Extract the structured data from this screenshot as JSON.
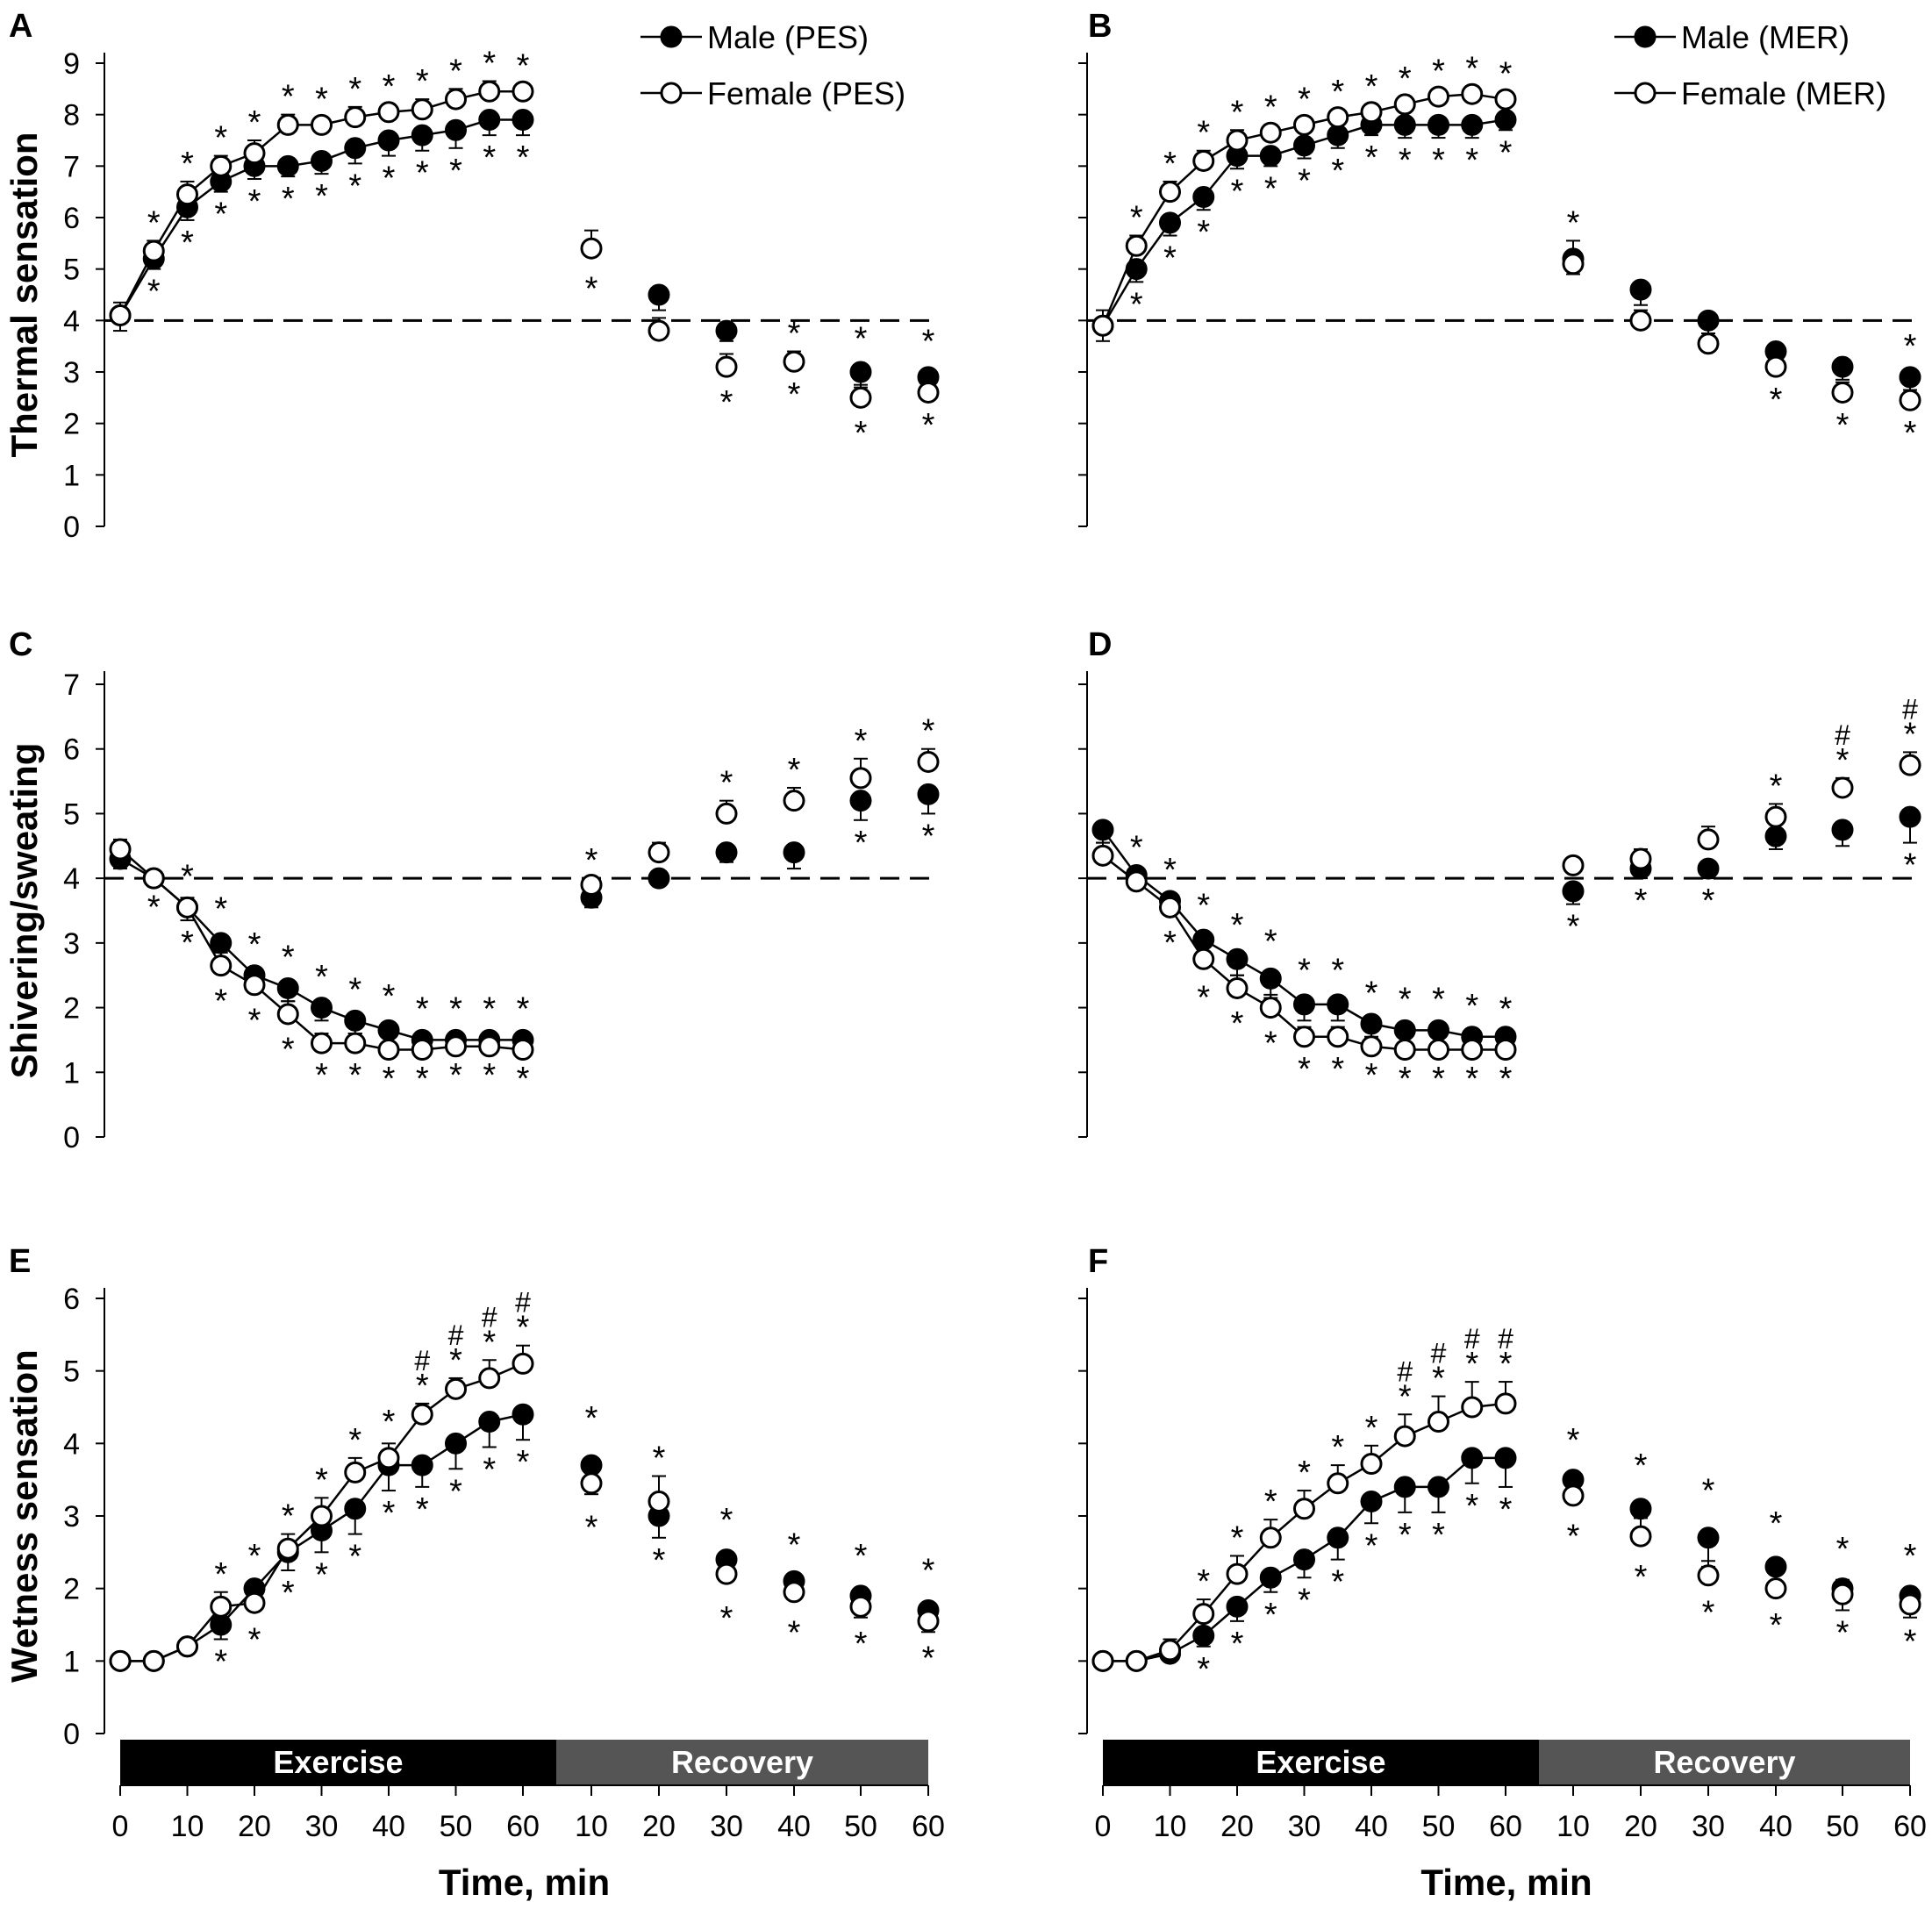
{
  "chart_data": [
    {
      "type": "line",
      "panel": "A",
      "ylabel": "Thermal sensation",
      "yticks": [
        "0",
        "1",
        "2",
        "3",
        "4",
        "5",
        "6",
        "7",
        "8",
        "9"
      ],
      "ylim": [
        0,
        9
      ],
      "baseline": 4,
      "legend": [
        "Male (PES)",
        "Female (PES)"
      ],
      "exercise_x": [
        0,
        5,
        10,
        15,
        20,
        25,
        30,
        35,
        40,
        45,
        50,
        55,
        60
      ],
      "recovery_x": [
        10,
        20,
        30,
        40,
        50,
        60
      ],
      "series": [
        {
          "name": "Male (PES)",
          "marker": "filled",
          "exercise": [
            4.1,
            5.2,
            6.2,
            6.7,
            7.0,
            7.0,
            7.1,
            7.35,
            7.5,
            7.6,
            7.7,
            7.9,
            7.9
          ],
          "exercise_err": [
            0.3,
            0.2,
            0.25,
            0.2,
            0.25,
            0.2,
            0.25,
            0.3,
            0.3,
            0.3,
            0.35,
            0.3,
            0.3
          ],
          "recovery": [
            null,
            4.5,
            3.8,
            null,
            3.0,
            2.9
          ],
          "recovery_err": [
            0,
            0.3,
            0.2,
            0,
            0.3,
            0.35
          ]
        },
        {
          "name": "Female (PES)",
          "marker": "open",
          "exercise": [
            4.1,
            5.35,
            6.45,
            7.0,
            7.25,
            7.8,
            7.8,
            7.95,
            8.05,
            8.1,
            8.3,
            8.45,
            8.45
          ],
          "exercise_err": [
            0.25,
            0.2,
            0.25,
            0.2,
            0.25,
            0.2,
            0.15,
            0.2,
            0.15,
            0.2,
            0.2,
            0.2,
            0.15
          ],
          "recovery": [
            5.4,
            3.8,
            3.1,
            3.2,
            2.5,
            2.6
          ],
          "recovery_err": [
            0.35,
            0.25,
            0.25,
            0.2,
            0.25,
            0.2
          ]
        }
      ],
      "annotations": {
        "exercise_above": [
          "",
          "*",
          "*",
          "*",
          "*",
          "*",
          "*",
          "*",
          "*",
          "*",
          "*",
          "*",
          "*"
        ],
        "exercise_below": [
          "",
          "*",
          "*",
          "*",
          "*",
          "*",
          "*",
          "*",
          "*",
          "*",
          "*",
          "*",
          "*"
        ],
        "recovery_above": [
          "",
          "",
          "",
          "*",
          "*",
          "*"
        ],
        "recovery_below": [
          "*",
          "",
          "*",
          "*",
          "*",
          "*"
        ]
      }
    },
    {
      "type": "line",
      "panel": "B",
      "ylabel": "",
      "yticks": [],
      "ylim": [
        0,
        9
      ],
      "baseline": 4,
      "legend": [
        "Male (MER)",
        "Female (MER)"
      ],
      "exercise_x": [
        0,
        5,
        10,
        15,
        20,
        25,
        30,
        35,
        40,
        45,
        50,
        55,
        60
      ],
      "recovery_x": [
        10,
        20,
        30,
        40,
        50,
        60
      ],
      "series": [
        {
          "name": "Male (MER)",
          "marker": "filled",
          "exercise": [
            3.9,
            5.0,
            5.9,
            6.4,
            7.2,
            7.2,
            7.4,
            7.6,
            7.8,
            7.8,
            7.8,
            7.8,
            7.9
          ],
          "exercise_err": [
            0.3,
            0.25,
            0.25,
            0.25,
            0.25,
            0.2,
            0.25,
            0.25,
            0.2,
            0.25,
            0.25,
            0.25,
            0.2
          ],
          "recovery": [
            5.2,
            4.6,
            4.0,
            3.4,
            3.1,
            2.9
          ],
          "recovery_err": [
            0.3,
            0.3,
            0.3,
            0.25,
            0.25,
            0.25
          ]
        },
        {
          "name": "Female (MER)",
          "marker": "open",
          "exercise": [
            3.9,
            5.45,
            6.5,
            7.1,
            7.5,
            7.65,
            7.8,
            7.95,
            8.05,
            8.2,
            8.35,
            8.4,
            8.3
          ],
          "exercise_err": [
            0.3,
            0.2,
            0.2,
            0.2,
            0.2,
            0.15,
            0.15,
            0.15,
            0.15,
            0.15,
            0.15,
            0.15,
            0.15
          ],
          "recovery": [
            5.1,
            4.0,
            3.55,
            3.1,
            2.6,
            2.45
          ],
          "recovery_err": [
            0.45,
            0.2,
            0.2,
            0.2,
            0.2,
            0.2
          ]
        }
      ],
      "annotations": {
        "exercise_above": [
          "",
          "*",
          "*",
          "*",
          "*",
          "*",
          "*",
          "*",
          "*",
          "*",
          "*",
          "*",
          "*"
        ],
        "exercise_below": [
          "",
          "*",
          "*",
          "*",
          "*",
          "*",
          "*",
          "*",
          "*",
          "*",
          "*",
          "*",
          "*"
        ],
        "recovery_above": [
          "*",
          "",
          "",
          "",
          "",
          "*"
        ],
        "recovery_below": [
          "",
          "",
          "",
          "*",
          "*",
          "*"
        ]
      }
    },
    {
      "type": "line",
      "panel": "C",
      "ylabel": "Shivering/sweating",
      "yticks": [
        "0",
        "1",
        "2",
        "3",
        "4",
        "5",
        "6",
        "7"
      ],
      "ylim": [
        0,
        7
      ],
      "baseline": 4,
      "legend": [],
      "exercise_x": [
        0,
        5,
        10,
        15,
        20,
        25,
        30,
        35,
        40,
        45,
        50,
        55,
        60
      ],
      "recovery_x": [
        10,
        20,
        30,
        40,
        50,
        60
      ],
      "series": [
        {
          "name": "Male (PES)",
          "marker": "filled",
          "exercise": [
            4.3,
            4.0,
            3.55,
            3.0,
            2.5,
            2.3,
            2.0,
            1.8,
            1.65,
            1.5,
            1.5,
            1.5,
            1.5
          ],
          "exercise_err": [
            0.15,
            0.1,
            0.2,
            0.25,
            0.2,
            0.2,
            0.2,
            0.2,
            0.25,
            0.2,
            0.2,
            0.2,
            0.2
          ],
          "recovery": [
            3.7,
            4.0,
            4.4,
            4.4,
            5.2,
            5.3
          ],
          "recovery_err": [
            0.15,
            0.1,
            0.15,
            0.25,
            0.3,
            0.3
          ]
        },
        {
          "name": "Female (PES)",
          "marker": "open",
          "exercise": [
            4.45,
            4.0,
            3.55,
            2.65,
            2.35,
            1.9,
            1.45,
            1.45,
            1.35,
            1.35,
            1.4,
            1.4,
            1.35
          ],
          "exercise_err": [
            0.15,
            0.1,
            0.15,
            0.2,
            0.2,
            0.2,
            0.15,
            0.15,
            0.1,
            0.1,
            0.1,
            0.1,
            0.1
          ],
          "recovery": [
            3.9,
            4.4,
            5.0,
            5.2,
            5.55,
            5.8
          ],
          "recovery_err": [
            0.1,
            0.15,
            0.2,
            0.2,
            0.3,
            0.2
          ]
        }
      ],
      "annotations": {
        "exercise_above": [
          "",
          "",
          "*",
          "*",
          "*",
          "*",
          "*",
          "*",
          "*",
          "*",
          "*",
          "*",
          "*"
        ],
        "exercise_below": [
          "",
          "*",
          "*",
          "*",
          "*",
          "*",
          "*",
          "*",
          "*",
          "*",
          "*",
          "*",
          "*"
        ],
        "recovery_above": [
          "*",
          "",
          "*",
          "*",
          "*",
          "*"
        ],
        "recovery_below": [
          "",
          "",
          "",
          "",
          "*",
          "*"
        ]
      }
    },
    {
      "type": "line",
      "panel": "D",
      "ylabel": "",
      "yticks": [],
      "ylim": [
        0,
        7
      ],
      "baseline": 4,
      "legend": [],
      "exercise_x": [
        0,
        5,
        10,
        15,
        20,
        25,
        30,
        35,
        40,
        45,
        50,
        55,
        60
      ],
      "recovery_x": [
        10,
        20,
        30,
        40,
        50,
        60
      ],
      "series": [
        {
          "name": "Male (MER)",
          "marker": "filled",
          "exercise": [
            4.75,
            4.05,
            3.65,
            3.05,
            2.75,
            2.45,
            2.05,
            2.05,
            1.75,
            1.65,
            1.65,
            1.55,
            1.55
          ],
          "exercise_err": [
            0.2,
            0.15,
            0.2,
            0.25,
            0.25,
            0.3,
            0.25,
            0.25,
            0.2,
            0.2,
            0.2,
            0.2,
            0.15
          ],
          "recovery": [
            3.8,
            4.15,
            4.15,
            4.65,
            4.75,
            4.95
          ],
          "recovery_err": [
            0.2,
            0.15,
            0.15,
            0.2,
            0.25,
            0.4
          ]
        },
        {
          "name": "Female (MER)",
          "marker": "open",
          "exercise": [
            4.35,
            3.95,
            3.55,
            2.75,
            2.3,
            2.0,
            1.55,
            1.55,
            1.4,
            1.35,
            1.35,
            1.35,
            1.35
          ],
          "exercise_err": [
            0.2,
            0.1,
            0.2,
            0.25,
            0.2,
            0.2,
            0.15,
            0.15,
            0.1,
            0.1,
            0.1,
            0.1,
            0.1
          ],
          "recovery": [
            4.2,
            4.3,
            4.6,
            4.95,
            5.4,
            5.75
          ],
          "recovery_err": [
            0.1,
            0.15,
            0.2,
            0.2,
            0.15,
            0.2
          ]
        }
      ],
      "annotations": {
        "exercise_above": [
          "",
          "*",
          "*",
          "*",
          "*",
          "*",
          "*",
          "*",
          "*",
          "*",
          "*",
          "*",
          "*"
        ],
        "exercise_below": [
          "",
          "",
          "*",
          "*",
          "*",
          "*",
          "*",
          "*",
          "*",
          "*",
          "*",
          "*",
          "*"
        ],
        "recovery_above": [
          "",
          "",
          "",
          "*",
          "*",
          "*"
        ],
        "recovery_below": [
          "*",
          "*",
          "*",
          "",
          "",
          "*"
        ],
        "recovery_hash": [
          "",
          "",
          "",
          "",
          "#",
          "#"
        ]
      }
    },
    {
      "type": "line",
      "panel": "E",
      "ylabel": "Wetness sensation",
      "yticks": [
        "0",
        "1",
        "2",
        "3",
        "4",
        "5",
        "6"
      ],
      "ylim": [
        0,
        6
      ],
      "baseline": null,
      "legend": [],
      "exercise_x": [
        0,
        5,
        10,
        15,
        20,
        25,
        30,
        35,
        40,
        45,
        50,
        55,
        60
      ],
      "recovery_x": [
        10,
        20,
        30,
        40,
        50,
        60
      ],
      "xticks": [
        "0",
        "10",
        "20",
        "30",
        "40",
        "50",
        "60",
        "10",
        "20",
        "30",
        "40",
        "50",
        "60"
      ],
      "xlabel": "Time, min",
      "phases": [
        "Exercise",
        "Recovery"
      ],
      "series": [
        {
          "name": "Male (PES)",
          "marker": "filled",
          "exercise": [
            1.0,
            1.0,
            1.2,
            1.5,
            2.0,
            2.5,
            2.8,
            3.1,
            3.7,
            3.7,
            4.0,
            4.3,
            4.4
          ],
          "exercise_err": [
            0.05,
            0.05,
            0.1,
            0.2,
            0.2,
            0.25,
            0.3,
            0.35,
            0.35,
            0.3,
            0.35,
            0.35,
            0.35
          ],
          "recovery": [
            3.7,
            3.0,
            2.4,
            2.1,
            1.9,
            1.7
          ],
          "recovery_err": [
            0.4,
            0.3,
            0.3,
            0.25,
            0.3,
            0.3
          ]
        },
        {
          "name": "Female (PES)",
          "marker": "open",
          "exercise": [
            1.0,
            1.0,
            1.2,
            1.75,
            1.8,
            2.55,
            3.0,
            3.6,
            3.8,
            4.4,
            4.75,
            4.9,
            5.1
          ],
          "exercise_err": [
            0.05,
            0.05,
            0.05,
            0.2,
            0.2,
            0.2,
            0.25,
            0.2,
            0.2,
            0.15,
            0.15,
            0.25,
            0.25
          ],
          "recovery": [
            3.45,
            3.2,
            2.2,
            1.95,
            1.75,
            1.55
          ],
          "recovery_err": [
            0.3,
            0.35,
            0.3,
            0.25,
            0.2,
            0.2
          ]
        }
      ],
      "annotations": {
        "exercise_above": [
          "",
          "",
          "",
          "*",
          "*",
          "*",
          "*",
          "*",
          "*",
          "*",
          "*",
          "*",
          "*"
        ],
        "exercise_below": [
          "",
          "",
          "",
          "*",
          "*",
          "*",
          "*",
          "*",
          "*",
          "*",
          "*",
          "*",
          "*"
        ],
        "exercise_hash": [
          "",
          "",
          "",
          "",
          "",
          "",
          "",
          "",
          "",
          "#",
          "#",
          "#",
          "#"
        ],
        "recovery_above": [
          "*",
          "*",
          "*",
          "*",
          "*",
          "*"
        ],
        "recovery_below": [
          "*",
          "*",
          "*",
          "*",
          "*",
          "*"
        ]
      }
    },
    {
      "type": "line",
      "panel": "F",
      "ylabel": "",
      "yticks": [],
      "ylim": [
        0,
        6
      ],
      "baseline": null,
      "legend": [],
      "exercise_x": [
        0,
        5,
        10,
        15,
        20,
        25,
        30,
        35,
        40,
        45,
        50,
        55,
        60
      ],
      "recovery_x": [
        10,
        20,
        30,
        40,
        50,
        60
      ],
      "xticks": [
        "0",
        "10",
        "20",
        "30",
        "40",
        "50",
        "60",
        "10",
        "20",
        "30",
        "40",
        "50",
        "60"
      ],
      "xlabel": "Time, min",
      "phases": [
        "Exercise",
        "Recovery"
      ],
      "series": [
        {
          "name": "Male (MER)",
          "marker": "filled",
          "exercise": [
            1.0,
            1.0,
            1.1,
            1.35,
            1.75,
            2.15,
            2.4,
            2.7,
            3.2,
            3.4,
            3.4,
            3.8,
            3.8
          ],
          "exercise_err": [
            0.05,
            0.05,
            0.1,
            0.15,
            0.2,
            0.2,
            0.25,
            0.3,
            0.3,
            0.35,
            0.35,
            0.35,
            0.4
          ],
          "recovery": [
            3.5,
            3.1,
            2.7,
            2.3,
            2.0,
            1.9
          ],
          "recovery_err": [
            0.3,
            0.35,
            0.4,
            0.35,
            0.3,
            0.3
          ]
        },
        {
          "name": "Female (MER)",
          "marker": "open",
          "exercise": [
            1.0,
            1.0,
            1.15,
            1.65,
            2.2,
            2.7,
            3.1,
            3.45,
            3.72,
            4.1,
            4.3,
            4.5,
            4.55
          ],
          "exercise_err": [
            0.05,
            0.05,
            0.15,
            0.2,
            0.25,
            0.25,
            0.25,
            0.25,
            0.25,
            0.3,
            0.35,
            0.35,
            0.3
          ],
          "recovery": [
            3.28,
            2.72,
            2.18,
            2.0,
            1.92,
            1.78
          ],
          "recovery_err": [
            0.25,
            0.25,
            0.2,
            0.2,
            0.2,
            0.2
          ]
        }
      ],
      "annotations": {
        "exercise_above": [
          "",
          "",
          "",
          "*",
          "*",
          "*",
          "*",
          "*",
          "*",
          "*",
          "*",
          "*",
          "*"
        ],
        "exercise_below": [
          "",
          "",
          "",
          "*",
          "*",
          "*",
          "*",
          "*",
          "*",
          "*",
          "*",
          "*",
          "*"
        ],
        "exercise_hash": [
          "",
          "",
          "",
          "",
          "",
          "",
          "",
          "",
          "",
          "#",
          "#",
          "#",
          "#"
        ],
        "recovery_above": [
          "*",
          "*",
          "*",
          "*",
          "*",
          "*"
        ],
        "recovery_below": [
          "*",
          "*",
          "*",
          "*",
          "*",
          "*"
        ]
      }
    }
  ]
}
